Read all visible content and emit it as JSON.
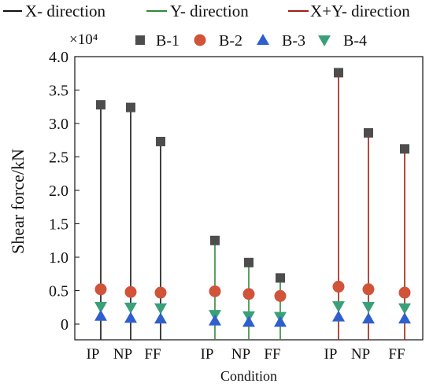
{
  "chart_data": {
    "type": "scatter",
    "title": "",
    "xlabel": "Condition",
    "ylabel": "Shear force/kN",
    "y_multiplier_label": "×10⁴",
    "ylim": [
      -0.4,
      4.0
    ],
    "yticks": [
      0,
      0.5,
      1.0,
      1.5,
      2.0,
      2.5,
      3.0,
      3.5,
      4.0
    ],
    "ytick_labels": [
      "0",
      "0.5",
      "1.0",
      "1.5",
      "2.0",
      "2.5",
      "3.0",
      "3.5",
      "4.0"
    ],
    "grid": false,
    "line_legend": [
      {
        "name": "X- direction",
        "color": "#111111"
      },
      {
        "name": "Y- direction",
        "color": "#2e8b3a"
      },
      {
        "name": "X+Y- direction",
        "color": "#a01e14"
      }
    ],
    "marker_legend": [
      {
        "name": "B-1",
        "marker": "square",
        "color": "#4d4d4d"
      },
      {
        "name": "B-2",
        "marker": "circle",
        "color": "#d0533a"
      },
      {
        "name": "B-3",
        "marker": "triangle-up",
        "color": "#2f5fcf"
      },
      {
        "name": "B-4",
        "marker": "triangle-down",
        "color": "#3aa07a"
      }
    ],
    "groups": [
      {
        "direction": "X- direction",
        "line_color": "#111111",
        "conditions": [
          "IP",
          "NP",
          "FF"
        ],
        "B-1": [
          3.28,
          3.24,
          2.73
        ],
        "B-2": [
          0.52,
          0.48,
          0.47
        ],
        "B-3": [
          0.12,
          0.09,
          0.08
        ],
        "B-4": [
          0.26,
          0.25,
          0.24
        ]
      },
      {
        "direction": "Y- direction",
        "line_color": "#2e8b3a",
        "conditions": [
          "IP",
          "NP",
          "FF"
        ],
        "B-1": [
          1.25,
          0.92,
          0.69
        ],
        "B-2": [
          0.49,
          0.45,
          0.42
        ],
        "B-3": [
          0.05,
          0.03,
          0.03
        ],
        "B-4": [
          0.14,
          0.12,
          0.11
        ]
      },
      {
        "direction": "X+Y- direction",
        "line_color": "#a01e14",
        "conditions": [
          "IP",
          "NP",
          "FF"
        ],
        "B-1": [
          3.76,
          2.86,
          2.62
        ],
        "B-2": [
          0.56,
          0.52,
          0.47
        ],
        "B-3": [
          0.11,
          0.08,
          0.08
        ],
        "B-4": [
          0.27,
          0.26,
          0.24
        ]
      }
    ]
  }
}
